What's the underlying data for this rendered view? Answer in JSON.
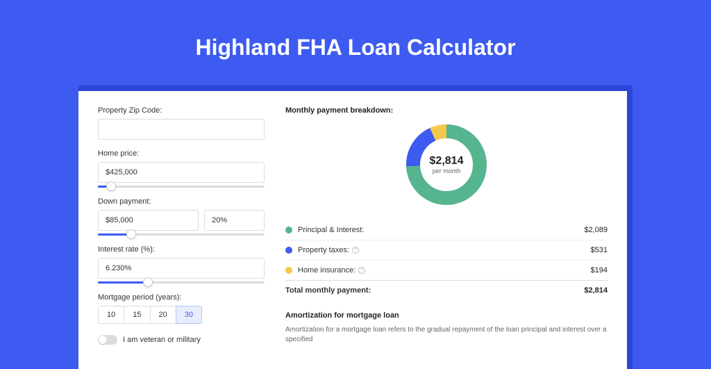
{
  "page": {
    "title": "Highland FHA Loan Calculator",
    "background_color": "#3d5af1"
  },
  "form": {
    "zip": {
      "label": "Property Zip Code:",
      "value": ""
    },
    "home_price": {
      "label": "Home price:",
      "value": "$425,000",
      "slider_pct": 8
    },
    "down_payment": {
      "label": "Down payment:",
      "value": "$85,000",
      "pct": "20%",
      "slider_pct": 20
    },
    "interest": {
      "label": "Interest rate (%):",
      "value": "6.230%",
      "slider_pct": 30
    },
    "period": {
      "label": "Mortgage period (years):",
      "options": [
        "10",
        "15",
        "20",
        "30"
      ],
      "selected_index": 3
    },
    "veteran": {
      "label": "I am veteran or military",
      "checked": false
    }
  },
  "breakdown": {
    "section_title": "Monthly payment breakdown:",
    "donut": {
      "value": "$2,814",
      "sub": "per month",
      "slices": [
        {
          "label": "Principal & Interest:",
          "amount": "$2,089",
          "color": "#56b48f",
          "pct": 74.2
        },
        {
          "label": "Property taxes:",
          "amount": "$531",
          "color": "#3d5af1",
          "pct": 18.9,
          "info": true
        },
        {
          "label": "Home insurance:",
          "amount": "$194",
          "color": "#f2c94c",
          "pct": 6.9,
          "info": true
        }
      ],
      "stroke_width": 20
    },
    "total_label": "Total monthly payment:",
    "total_value": "$2,814"
  },
  "amortization": {
    "title": "Amortization for mortgage loan",
    "text": "Amortization for a mortgage loan refers to the gradual repayment of the loan principal and interest over a specified"
  }
}
